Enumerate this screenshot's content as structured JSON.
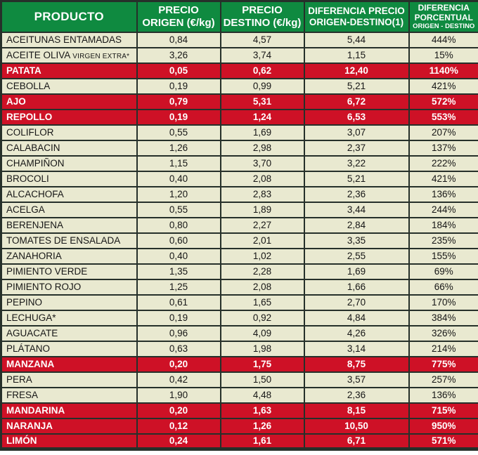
{
  "colors": {
    "header_bg": "#0f8a40",
    "highlight_bg": "#ce1126",
    "row_bg": "#e9e9d0",
    "border": "#26302a",
    "header_text": "#ffffff",
    "row_text": "#161616"
  },
  "header": {
    "product": "PRODUCTO",
    "origin_line1": "PRECIO",
    "origin_line2": "ORIGEN (€/kg)",
    "dest_line1": "PRECIO",
    "dest_line2": "DESTINO (€/kg)",
    "diff_line1": "DIFERENCIA PRECIO",
    "diff_line2": "ORIGEN-DESTINO(1)",
    "pct_line1": "DIFERENCIA",
    "pct_line2": "PORCENTUAL",
    "pct_line3": "ORIGEN - DESTINO"
  },
  "chart_data": {
    "type": "table",
    "columns": [
      "PRODUCTO",
      "PRECIO ORIGEN (€/kg)",
      "PRECIO DESTINO (€/kg)",
      "DIFERENCIA PRECIO ORIGEN-DESTINO(1)",
      "DIFERENCIA PORCENTUAL ORIGEN - DESTINO"
    ],
    "highlight_meaning_color": "#ce1126",
    "rows": [
      {
        "name": "ACEITUNAS ENTAMADAS",
        "name_small": "",
        "values": [
          "0,84",
          "4,57",
          "5,44",
          "444%"
        ],
        "highlight": false
      },
      {
        "name": "ACEITE OLIVA",
        "name_small": "VIRGEN EXTRA*",
        "values": [
          "3,26",
          "3,74",
          "1,15",
          "15%"
        ],
        "highlight": false
      },
      {
        "name": "PATATA",
        "name_small": "",
        "values": [
          "0,05",
          "0,62",
          "12,40",
          "1140%"
        ],
        "highlight": true
      },
      {
        "name": "CEBOLLA",
        "name_small": "",
        "values": [
          "0,19",
          "0,99",
          "5,21",
          "421%"
        ],
        "highlight": false
      },
      {
        "name": "AJO",
        "name_small": "",
        "values": [
          "0,79",
          "5,31",
          "6,72",
          "572%"
        ],
        "highlight": true
      },
      {
        "name": "REPOLLO",
        "name_small": "",
        "values": [
          "0,19",
          "1,24",
          "6,53",
          "553%"
        ],
        "highlight": true
      },
      {
        "name": "COLIFLOR",
        "name_small": "",
        "values": [
          "0,55",
          "1,69",
          "3,07",
          "207%"
        ],
        "highlight": false
      },
      {
        "name": "CALABACIN",
        "name_small": "",
        "values": [
          "1,26",
          "2,98",
          "2,37",
          "137%"
        ],
        "highlight": false
      },
      {
        "name": "CHAMPIÑON",
        "name_small": "",
        "values": [
          "1,15",
          "3,70",
          "3,22",
          "222%"
        ],
        "highlight": false
      },
      {
        "name": "BROCOLI",
        "name_small": "",
        "values": [
          "0,40",
          "2,08",
          "5,21",
          "421%"
        ],
        "highlight": false
      },
      {
        "name": "ALCACHOFA",
        "name_small": "",
        "values": [
          "1,20",
          "2,83",
          "2,36",
          "136%"
        ],
        "highlight": false
      },
      {
        "name": "ACELGA",
        "name_small": "",
        "values": [
          "0,55",
          "1,89",
          "3,44",
          "244%"
        ],
        "highlight": false
      },
      {
        "name": "BERENJENA",
        "name_small": "",
        "values": [
          "0,80",
          "2,27",
          "2,84",
          "184%"
        ],
        "highlight": false
      },
      {
        "name": "TOMATES DE ENSALADA",
        "name_small": "",
        "values": [
          "0,60",
          "2,01",
          "3,35",
          "235%"
        ],
        "highlight": false
      },
      {
        "name": "ZANAHORIA",
        "name_small": "",
        "values": [
          "0,40",
          "1,02",
          "2,55",
          "155%"
        ],
        "highlight": false
      },
      {
        "name": "PIMIENTO VERDE",
        "name_small": "",
        "values": [
          "1,35",
          "2,28",
          "1,69",
          "69%"
        ],
        "highlight": false
      },
      {
        "name": "PIMIENTO ROJO",
        "name_small": "",
        "values": [
          "1,25",
          "2,08",
          "1,66",
          "66%"
        ],
        "highlight": false
      },
      {
        "name": "PEPINO",
        "name_small": "",
        "values": [
          "0,61",
          "1,65",
          "2,70",
          "170%"
        ],
        "highlight": false
      },
      {
        "name": "LECHUGA*",
        "name_small": "",
        "values": [
          "0,19",
          "0,92",
          "4,84",
          "384%"
        ],
        "highlight": false
      },
      {
        "name": "AGUACATE",
        "name_small": "",
        "values": [
          "0,96",
          "4,09",
          "4,26",
          "326%"
        ],
        "highlight": false
      },
      {
        "name": "PLÁTANO",
        "name_small": "",
        "values": [
          "0,63",
          "1,98",
          "3,14",
          "214%"
        ],
        "highlight": false
      },
      {
        "name": "MANZANA",
        "name_small": "",
        "values": [
          "0,20",
          "1,75",
          "8,75",
          "775%"
        ],
        "highlight": true
      },
      {
        "name": "PERA",
        "name_small": "",
        "values": [
          "0,42",
          "1,50",
          "3,57",
          "257%"
        ],
        "highlight": false
      },
      {
        "name": "FRESA",
        "name_small": "",
        "values": [
          "1,90",
          "4,48",
          "2,36",
          "136%"
        ],
        "highlight": false
      },
      {
        "name": "MANDARINA",
        "name_small": "",
        "values": [
          "0,20",
          "1,63",
          "8,15",
          "715%"
        ],
        "highlight": true
      },
      {
        "name": "NARANJA",
        "name_small": "",
        "values": [
          "0,12",
          "1,26",
          "10,50",
          "950%"
        ],
        "highlight": true
      },
      {
        "name": "LIMÓN",
        "name_small": "",
        "values": [
          "0,24",
          "1,61",
          "6,71",
          "571%"
        ],
        "highlight": true
      }
    ]
  }
}
